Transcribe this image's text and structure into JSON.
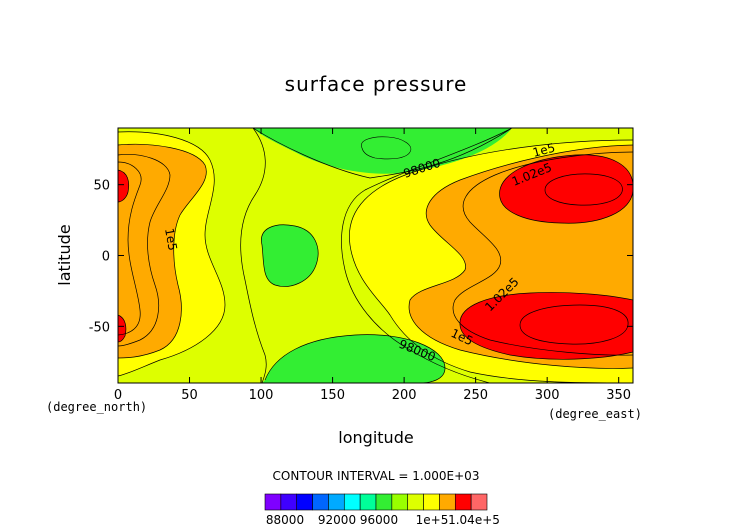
{
  "chart_data": {
    "type": "contour",
    "title": "surface pressure",
    "xlabel": "longitude",
    "ylabel": "latitude",
    "x_unit": "(degree_east)",
    "y_unit": "(degree_north)",
    "xlim": [
      0,
      360
    ],
    "ylim": [
      -90,
      90
    ],
    "x_ticks": [
      0,
      50,
      100,
      150,
      200,
      250,
      300,
      350
    ],
    "y_ticks": [
      -50,
      0,
      50
    ],
    "contour_interval_text": "CONTOUR INTERVAL = 1.000E+03",
    "contour_levels": [
      96000,
      97000,
      98000,
      99000,
      100000,
      101000,
      102000,
      103000
    ],
    "contour_labels": [
      "98000",
      "98000",
      "1e5",
      "1e5",
      "1e5",
      "1.02e5",
      "1.02e5"
    ],
    "colorbar_labels": [
      "88000",
      "92000",
      "96000",
      "1e+5",
      "1.04e+5"
    ],
    "colorbar_colors": [
      "#7f00ff",
      "#3f00ff",
      "#0000ff",
      "#0066ff",
      "#00aaff",
      "#00ffff",
      "#00ff99",
      "#33ee33",
      "#99ff00",
      "#ddff00",
      "#ffff00",
      "#ffaa00",
      "#ff0000",
      "#ff6666"
    ],
    "grid": false,
    "legend": "colorbar-bottom"
  }
}
